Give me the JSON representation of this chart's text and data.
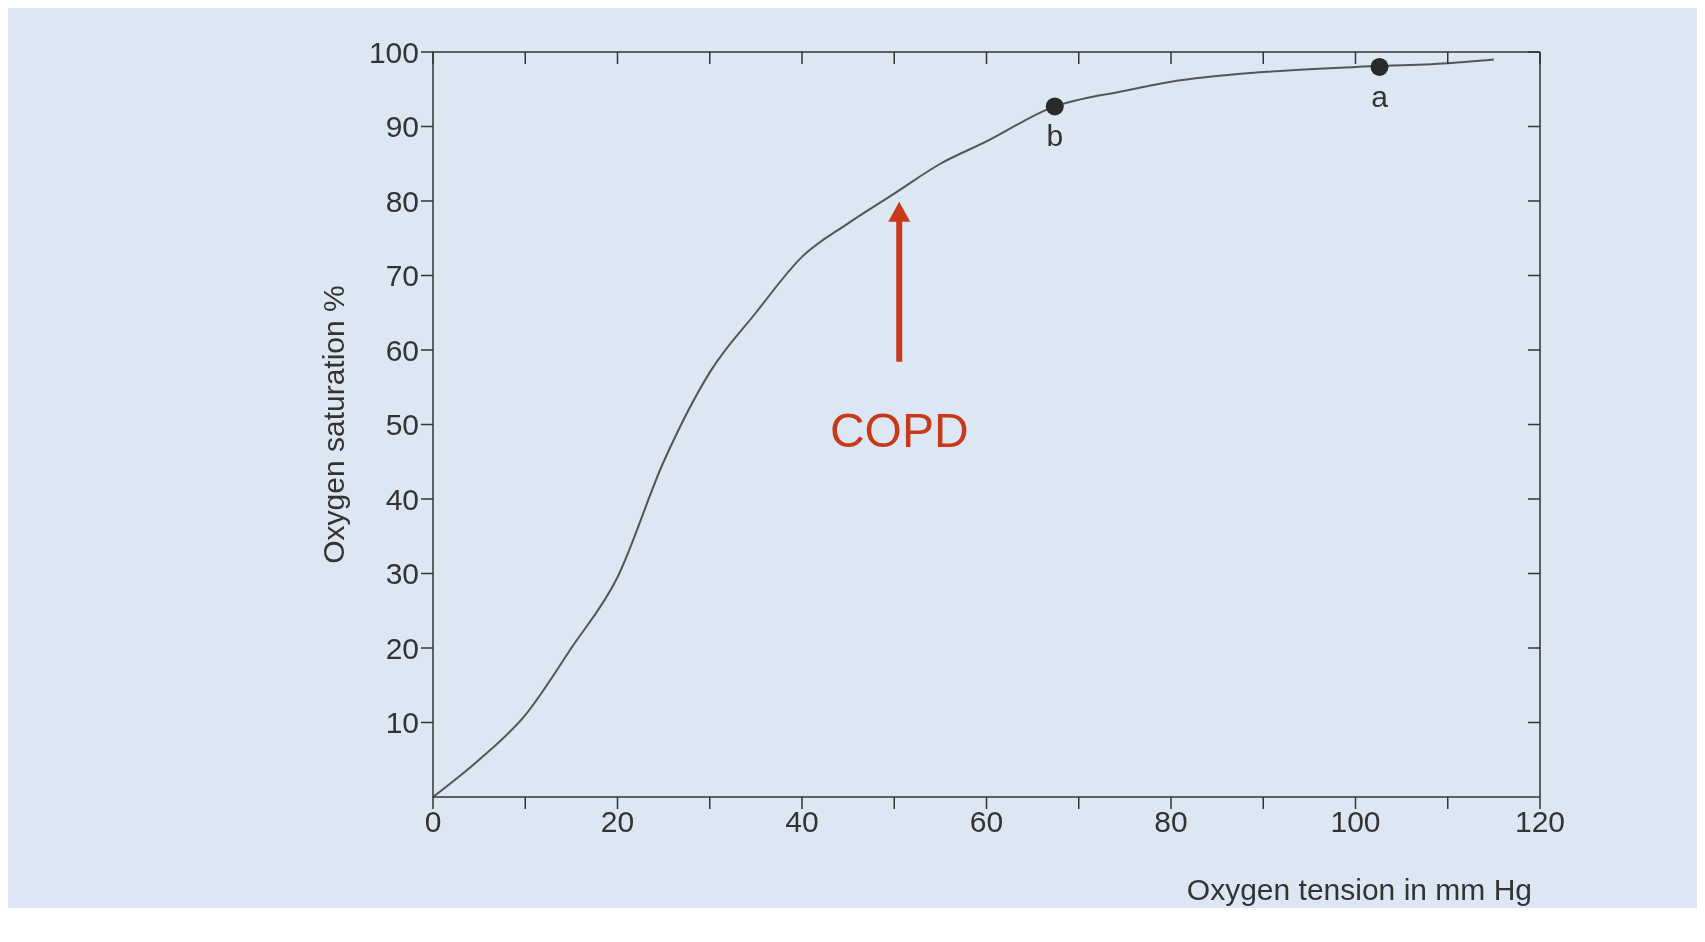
{
  "chart_data": {
    "type": "line",
    "xlabel": "Oxygen tension in mm Hg",
    "ylabel": "Oxygen saturation %",
    "xlim": [
      0,
      120
    ],
    "ylim": [
      0,
      100
    ],
    "xticks": [
      0,
      {
        "value": 10,
        "label": null
      },
      20,
      {
        "value": 30,
        "label": null
      },
      40,
      {
        "value": 50,
        "label": null
      },
      60,
      {
        "value": 70,
        "label": null
      },
      80,
      {
        "value": 90,
        "label": null
      },
      100,
      {
        "value": 110,
        "label": null
      },
      120
    ],
    "yticks": [
      10,
      20,
      30,
      40,
      50,
      60,
      70,
      80,
      90,
      100
    ],
    "line_style": "solid",
    "series": [
      {
        "color": "#555555",
        "marker": "none",
        "x": [
          0,
          5,
          10,
          15,
          20,
          25,
          30,
          35,
          40,
          45,
          50,
          55,
          60,
          67,
          75,
          80,
          90,
          100,
          110,
          115
        ],
        "values": [
          0,
          5,
          11,
          20,
          29.5,
          45,
          57,
          65,
          72.5,
          77,
          81,
          85,
          88,
          92.5,
          94.8,
          96,
          97.3,
          98,
          98.5,
          99
        ]
      },
      {
        "type": "scatter",
        "marker": "circle",
        "color": "#2a2a2a",
        "x": [
          67.4,
          102.6
        ],
        "values": [
          92.7,
          98
        ],
        "value_labels": [
          "b",
          "a"
        ]
      }
    ],
    "annotations": [
      "COPD"
    ]
  }
}
